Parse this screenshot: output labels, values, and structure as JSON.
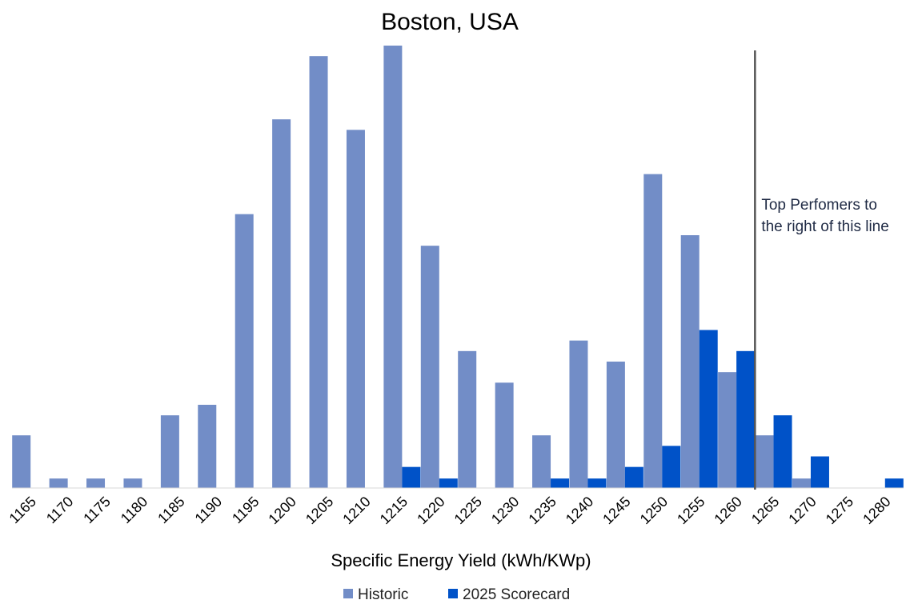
{
  "chart_data": {
    "type": "bar",
    "title": "Boston, USA",
    "xlabel": "Specific Energy Yield (kWh/KWp)",
    "ylabel": "",
    "categories": [
      "1165",
      "1170",
      "1175",
      "1180",
      "1185",
      "1190",
      "1195",
      "1200",
      "1205",
      "1210",
      "1215",
      "1220",
      "1225",
      "1230",
      "1235",
      "1240",
      "1245",
      "1250",
      "1255",
      "1260",
      "1265",
      "1270",
      "1275",
      "1280"
    ],
    "series": [
      {
        "name": "Historic",
        "color": "#728dc7",
        "values": [
          2.5,
          0.45,
          0.45,
          0.45,
          3.45,
          3.95,
          13,
          17.5,
          20.5,
          17,
          21,
          11.5,
          6.5,
          5,
          2.5,
          7,
          6,
          14.9,
          12,
          5.5,
          2.5,
          0.45,
          0,
          0
        ]
      },
      {
        "name": "2025 Scorecard",
        "color": "#0052c8",
        "values": [
          0,
          0,
          0,
          0,
          0,
          0,
          0,
          0,
          0,
          0,
          1,
          0.45,
          0,
          0,
          0.45,
          0.45,
          1,
          2,
          7.5,
          6.5,
          3.45,
          1.5,
          0,
          0.45
        ]
      }
    ],
    "ylim": [
      0,
      21
    ],
    "grid": false,
    "legend": "bottom",
    "reference_line": {
      "x": 1262.5,
      "color": "#555555",
      "annotation": [
        "Top Perfomers to",
        "the right of this line"
      ]
    }
  }
}
